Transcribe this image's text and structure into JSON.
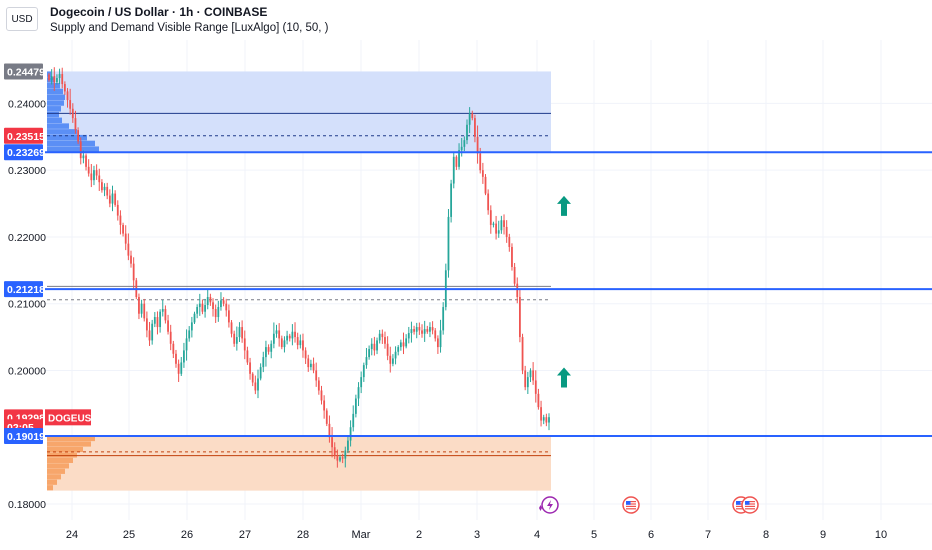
{
  "header": {
    "currency": "USD",
    "title": "Dogecoin / US Dollar · 1h · COINBASE",
    "subtitle": "Supply and Demand Visible Range [LuxAlgo] (10, 50, )"
  },
  "colors": {
    "up": "#26a69a",
    "down": "#ef5350",
    "supply": "#d4e0fb",
    "supply_profile": "#5b8ff5",
    "demand": "#fbdcc6",
    "demand_profile": "#f7a66b",
    "blue_line": "#2962ff",
    "arrow": "#089981",
    "last_price": "#f23645"
  },
  "chart_data": {
    "type": "candlestick",
    "symbol": "DOGEUSD",
    "y_range": [
      0.1776,
      0.2495
    ],
    "y_ticks": [
      "0.18000",
      "0.20000",
      "0.21000",
      "0.22000",
      "0.23000",
      "0.24000"
    ],
    "x_ticks": [
      "24",
      "25",
      "26",
      "27",
      "28",
      "Mar",
      "2",
      "3",
      "4",
      "5",
      "6",
      "7",
      "8",
      "9",
      "10"
    ],
    "price_labels": [
      {
        "text": "0.24479",
        "value": 0.24479,
        "color": "#787b86"
      },
      {
        "text": "0.23515",
        "value": 0.23515,
        "color": "#f23645"
      },
      {
        "text": "0.23269",
        "value": 0.23269,
        "color": "#2962ff"
      },
      {
        "text": "0.21218",
        "value": 0.21218,
        "color": "#2962ff"
      },
      {
        "text": "0.19298",
        "value": 0.19298,
        "color": "#f23645"
      },
      {
        "text": "02:05",
        "value": 0.1915,
        "color": "#f23645"
      },
      {
        "text": "0.19019",
        "value": 0.19019,
        "color": "#2962ff"
      }
    ],
    "last_price_tag": "DOGEUSD",
    "horizontal_lines": [
      0.23269,
      0.21218,
      0.19019
    ],
    "supply_zone": {
      "top": 0.24479,
      "bottom": 0.23269,
      "mid": 0.2385,
      "dashed": 0.23515
    },
    "equilibrium_zone": {
      "top": 0.2126,
      "bottom": 0.2093,
      "dashed": 0.2106
    },
    "demand_zone": {
      "top": 0.19019,
      "bottom": 0.182,
      "mid": 0.18725,
      "dashed": 0.1878
    },
    "up_arrows": [
      0.2245,
      0.1988
    ],
    "event_icons": [
      "lightning",
      "us-flag",
      "us-flag",
      "us-flag"
    ],
    "closes": [
      0.2435,
      0.2441,
      0.2432,
      0.2438,
      0.2444,
      0.2429,
      0.2418,
      0.2405,
      0.2392,
      0.2378,
      0.236,
      0.2343,
      0.2318,
      0.2322,
      0.2305,
      0.2295,
      0.2285,
      0.23,
      0.2292,
      0.2282,
      0.227,
      0.2275,
      0.2262,
      0.225,
      0.2265,
      0.2248,
      0.2232,
      0.2218,
      0.2205,
      0.219,
      0.2172,
      0.216,
      0.2135,
      0.211,
      0.2085,
      0.21,
      0.2078,
      0.206,
      0.2045,
      0.207,
      0.208,
      0.2065,
      0.2088,
      0.2092,
      0.2075,
      0.2058,
      0.204,
      0.2025,
      0.201,
      0.1995,
      0.2012,
      0.203,
      0.2048,
      0.206,
      0.2072,
      0.2085,
      0.2095,
      0.21,
      0.2088,
      0.2098,
      0.211,
      0.2102,
      0.2092,
      0.208,
      0.2095,
      0.2105,
      0.21,
      0.209,
      0.2072,
      0.2055,
      0.204,
      0.205,
      0.2065,
      0.2048,
      0.203,
      0.2012,
      0.1995,
      0.1982,
      0.197,
      0.1988,
      0.2005,
      0.202,
      0.2035,
      0.2028,
      0.204,
      0.2055,
      0.206,
      0.2048,
      0.2035,
      0.2045,
      0.2052,
      0.2048,
      0.2058,
      0.205,
      0.2038,
      0.2045,
      0.203,
      0.2018,
      0.2005,
      0.201,
      0.2,
      0.1985,
      0.197,
      0.1955,
      0.194,
      0.192,
      0.19,
      0.1885,
      0.1872,
      0.1865,
      0.187,
      0.1868,
      0.188,
      0.1895,
      0.1915,
      0.1935,
      0.1958,
      0.1975,
      0.199,
      0.2008,
      0.202,
      0.2032,
      0.204,
      0.203,
      0.2045,
      0.2055,
      0.205,
      0.204,
      0.2022,
      0.201,
      0.2018,
      0.2028,
      0.2035,
      0.2042,
      0.2036,
      0.2048,
      0.2056,
      0.2062,
      0.2058,
      0.2065,
      0.206,
      0.2055,
      0.2062,
      0.2058,
      0.2065,
      0.206,
      0.2048,
      0.2035,
      0.206,
      0.2095,
      0.215,
      0.223,
      0.228,
      0.232,
      0.2305,
      0.233,
      0.2335,
      0.2345,
      0.2368,
      0.2385,
      0.2378,
      0.235,
      0.2325,
      0.23,
      0.229,
      0.2265,
      0.224,
      0.2218,
      0.222,
      0.2205,
      0.221,
      0.2225,
      0.2215,
      0.22,
      0.2185,
      0.2155,
      0.213,
      0.211,
      0.205,
      0.2,
      0.1975,
      0.199,
      0.2,
      0.1985,
      0.1965,
      0.1945,
      0.1925,
      0.193,
      0.1922,
      0.193
    ]
  }
}
